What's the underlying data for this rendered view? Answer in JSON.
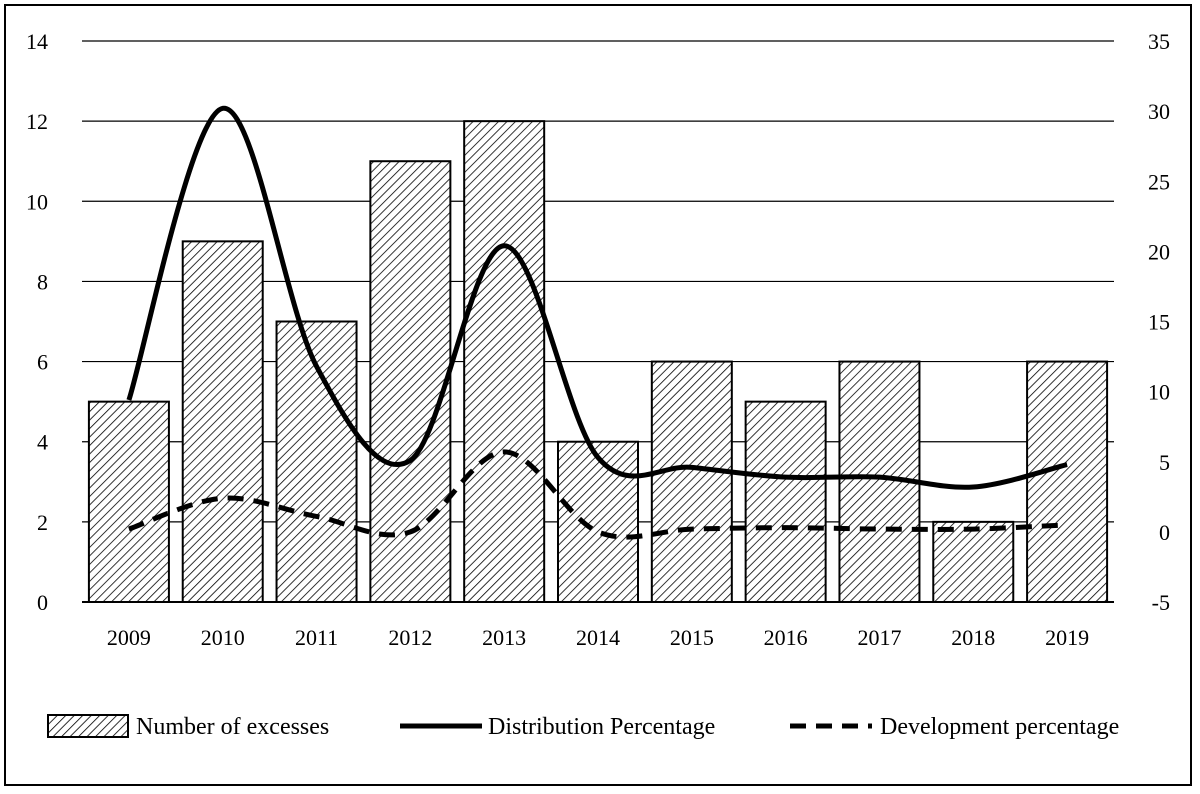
{
  "chart_data": {
    "type": "bar",
    "categories": [
      "2009",
      "2010",
      "2011",
      "2012",
      "2013",
      "2014",
      "2015",
      "2016",
      "2017",
      "2018",
      "2019"
    ],
    "series": [
      {
        "name": "Number of excesses",
        "type": "bar",
        "axis": "left",
        "values": [
          5,
          9,
          7,
          11,
          12,
          4,
          6,
          5,
          6,
          2,
          6
        ]
      },
      {
        "name": "Distribution Percentage",
        "type": "line",
        "axis": "right",
        "style": "solid",
        "values": [
          9.4,
          30.2,
          11.8,
          5.1,
          20.4,
          5.3,
          4.6,
          3.9,
          3.9,
          3.2,
          4.8
        ]
      },
      {
        "name": "Development percentage",
        "type": "line",
        "axis": "right",
        "style": "dashed",
        "values": [
          0.2,
          2.4,
          1.1,
          0,
          5.7,
          0,
          0.2,
          0.3,
          0.2,
          0.2,
          0.5
        ]
      }
    ],
    "y_left": {
      "ylim": [
        0,
        14
      ],
      "ticks": [
        "0",
        "2",
        "4",
        "6",
        "8",
        "10",
        "12",
        "14"
      ]
    },
    "y_right": {
      "ylim": [
        -5,
        35
      ],
      "ticks": [
        "-5",
        "0",
        "5",
        "10",
        "15",
        "20",
        "25",
        "30",
        "35"
      ]
    },
    "grid": true,
    "legend": "bottom",
    "colors": {
      "bar_fill": "#ffffff",
      "bar_hatch": "#000000",
      "line": "#000000",
      "grid": "#000000"
    }
  }
}
